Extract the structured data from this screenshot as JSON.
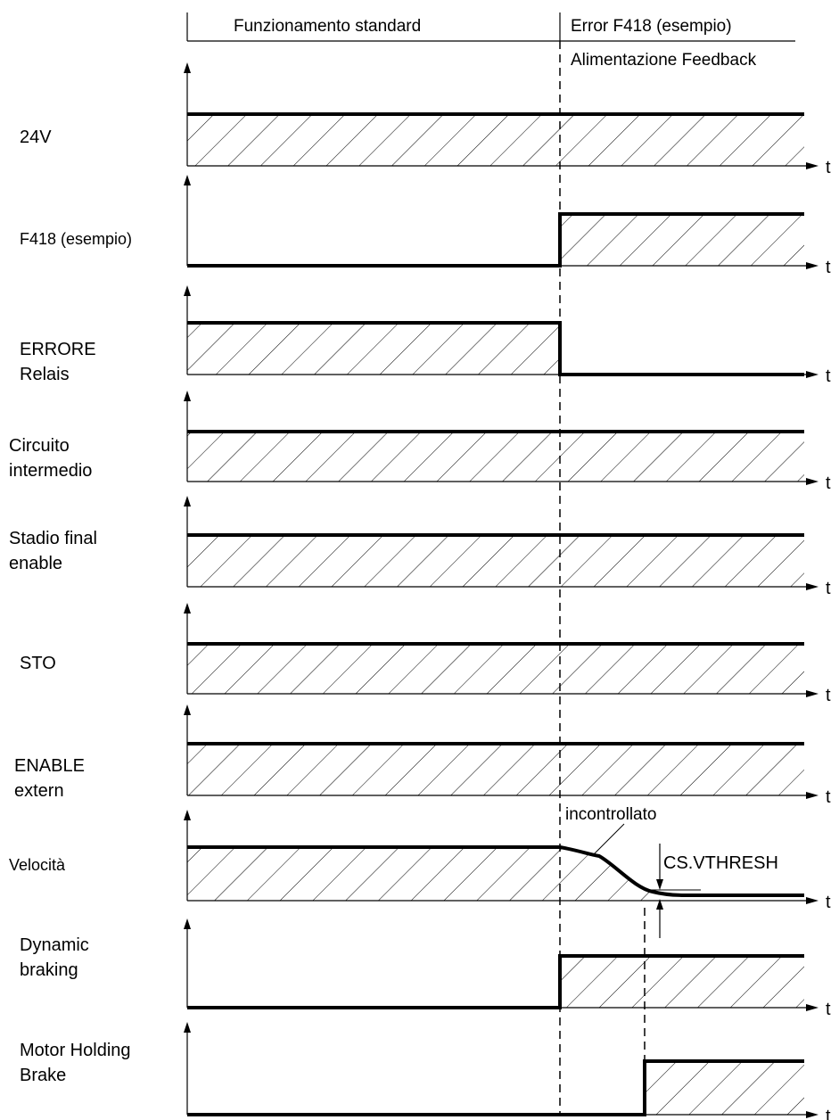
{
  "header": {
    "phase_left": "Funzionamento standard",
    "phase_right": "Error F418 (esempio)",
    "phase_right_sub": "Alimentazione Feedback"
  },
  "time_axis_label": "t",
  "signals": [
    {
      "label": [
        "24V"
      ]
    },
    {
      "label": [
        "F418 (esempio)"
      ]
    },
    {
      "label": [
        "ERRORE",
        "Relais"
      ]
    },
    {
      "label": [
        "Circuito",
        "intermedio"
      ]
    },
    {
      "label": [
        "Stadio final",
        "enable"
      ]
    },
    {
      "label": [
        "STO"
      ]
    },
    {
      "label": [
        "ENABLE",
        "extern"
      ]
    },
    {
      "label": [
        "Velocità"
      ]
    },
    {
      "label": [
        "Dynamic",
        "braking"
      ]
    },
    {
      "label": [
        "Motor Holding",
        "Brake"
      ]
    }
  ],
  "annotations": {
    "uncontrolled": "incontrollato",
    "threshold": "CS.VTHRESH"
  }
}
